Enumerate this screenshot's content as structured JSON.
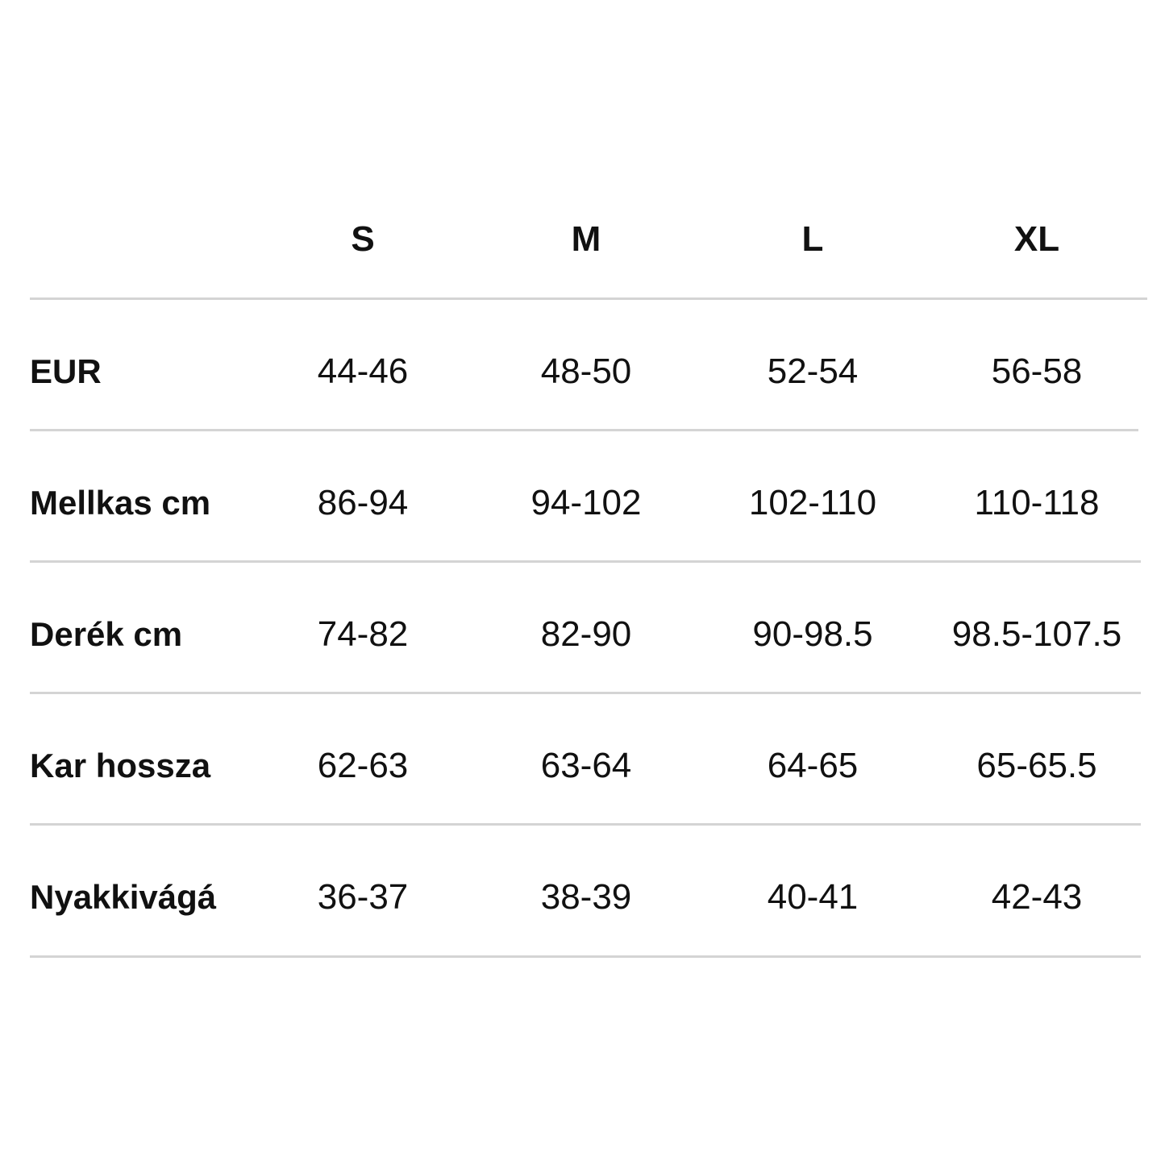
{
  "table": {
    "columns": [
      "S",
      "M",
      "L",
      "XL"
    ],
    "rows": [
      {
        "label": "EUR",
        "values": [
          "44-46",
          "48-50",
          "52-54",
          "56-58"
        ]
      },
      {
        "label": "Mellkas cm",
        "values": [
          "86-94",
          "94-102",
          "102-110",
          "110-118"
        ]
      },
      {
        "label": "Derék cm",
        "values": [
          "74-82",
          "82-90",
          "90-98.5",
          "98.5-107.5"
        ]
      },
      {
        "label": "Kar hossza",
        "values": [
          "62-63",
          "63-64",
          "64-65",
          "65-65.5"
        ]
      },
      {
        "label": "Nyakkivágá",
        "values": [
          "36-37",
          "38-39",
          "40-41",
          "42-43"
        ]
      }
    ]
  },
  "colors": {
    "text": "#111111",
    "divider": "#d4d4d4",
    "background": "#ffffff"
  }
}
